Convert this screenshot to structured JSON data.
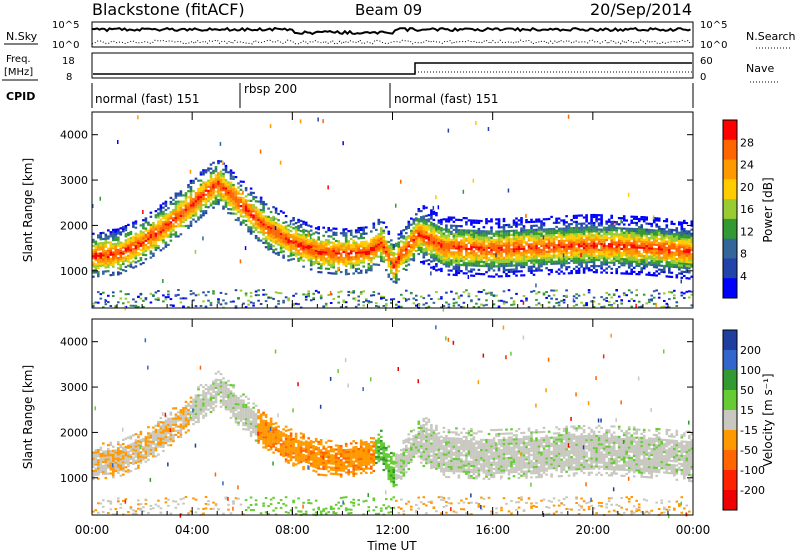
{
  "header": {
    "station": "Blackstone (fitACF)",
    "beam": "Beam 09",
    "date": "20/Sep/2014"
  },
  "nsky_panel": {
    "left_label": "N.Sky",
    "right_label": "N.Search",
    "ticks_left": [
      "10^5",
      "10^0"
    ],
    "ticks_right": [
      "10^5",
      "10^0"
    ]
  },
  "freq_panel": {
    "left_label_1": "Freq.",
    "left_label_2": "[MHz]",
    "right_label": "Nave",
    "ticks_left": [
      "18",
      "8"
    ],
    "ticks_right": [
      "60",
      "0"
    ]
  },
  "cpid": {
    "label": "CPID",
    "segments": [
      {
        "name": "normal (fast) 151",
        "start_h": 0,
        "end_h": 6
      },
      {
        "name": "rbsp 200",
        "start_h": 6,
        "end_h": 12
      },
      {
        "name": "normal (fast) 151",
        "start_h": 12,
        "end_h": 24
      }
    ]
  },
  "chart_data": [
    {
      "type": "heatmap",
      "title": "Power",
      "ylabel": "Slant Range [km]",
      "xlabel": "Time UT",
      "x_range_hours": [
        0,
        24
      ],
      "ylim": [
        180,
        4500
      ],
      "y_ticks": [
        "1000",
        "2000",
        "3000",
        "4000"
      ],
      "x_ticks": [
        "00:00",
        "04:00",
        "08:00",
        "12:00",
        "16:00",
        "20:00",
        "00:00"
      ],
      "colorbar": {
        "label": "Power [dB]",
        "ticks": [
          "28",
          "24",
          "20",
          "16",
          "12",
          "8",
          "4"
        ],
        "colors": [
          "#ff0000",
          "#ff6600",
          "#ff9900",
          "#ffcc00",
          "#99cc33",
          "#339933",
          "#336699",
          "#2244aa",
          "#0000ff"
        ]
      },
      "main_band": [
        {
          "t": 0,
          "r": 1300
        },
        {
          "t": 1,
          "r": 1350
        },
        {
          "t": 2,
          "r": 1600
        },
        {
          "t": 3,
          "r": 2000
        },
        {
          "t": 4.5,
          "r": 2700
        },
        {
          "t": 5,
          "r": 2900
        },
        {
          "t": 7,
          "r": 1900
        },
        {
          "t": 8,
          "r": 1600
        },
        {
          "t": 9,
          "r": 1400
        },
        {
          "t": 10,
          "r": 1350
        },
        {
          "t": 11,
          "r": 1400
        },
        {
          "t": 11.5,
          "r": 1600
        },
        {
          "t": 12,
          "r": 1100
        },
        {
          "t": 13,
          "r": 1800
        },
        {
          "t": 14,
          "r": 1500
        },
        {
          "t": 16,
          "r": 1450
        },
        {
          "t": 18,
          "r": 1500
        },
        {
          "t": 20,
          "r": 1550
        },
        {
          "t": 22,
          "r": 1500
        },
        {
          "t": 24,
          "r": 1400
        }
      ]
    },
    {
      "type": "heatmap",
      "title": "Velocity",
      "ylabel": "Slant Range [km]",
      "xlabel": "Time UT",
      "x_range_hours": [
        0,
        24
      ],
      "ylim": [
        180,
        4500
      ],
      "y_ticks": [
        "1000",
        "2000",
        "3000",
        "4000"
      ],
      "x_ticks": [
        "00:00",
        "04:00",
        "08:00",
        "12:00",
        "16:00",
        "20:00",
        "00:00"
      ],
      "colorbar": {
        "label": "Velocity [m s⁻¹]",
        "ticks": [
          "200",
          "100",
          "50",
          "15",
          "-15",
          "-50",
          "-100",
          "-200"
        ],
        "colors": [
          "#1f3fa0",
          "#3366cc",
          "#339933",
          "#66cc33",
          "#c8c8c0",
          "#ff9900",
          "#ff6600",
          "#ff2200",
          "#ee0000"
        ]
      }
    }
  ],
  "x_axis": {
    "label": "Time UT",
    "ticks": [
      "00:00",
      "04:00",
      "08:00",
      "12:00",
      "16:00",
      "20:00",
      "00:00"
    ]
  }
}
